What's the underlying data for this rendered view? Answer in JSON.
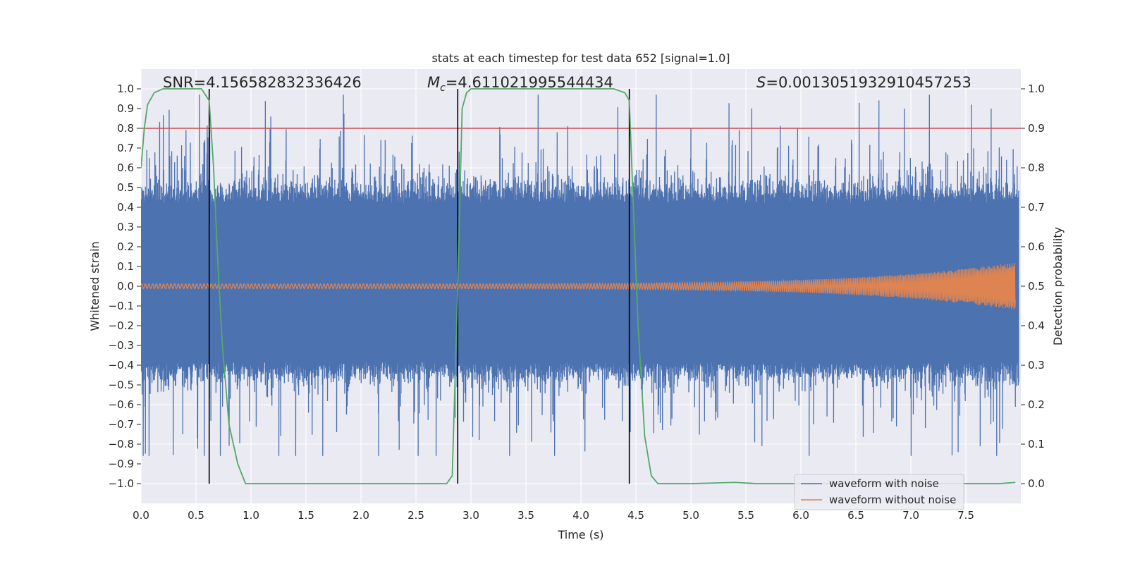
{
  "chart_data": {
    "type": "line",
    "title": "stats at each timestep for test data 652 [signal=1.0]",
    "xlabel": "Time (s)",
    "ylabel_left": "Whitened strain",
    "ylabel_right": "Detection probability",
    "xlim": [
      0.0,
      8.0
    ],
    "ylim_left": [
      -1.1,
      1.1
    ],
    "ylim_right": [
      -0.05,
      1.05
    ],
    "x_ticks": [
      "0.0",
      "0.5",
      "1.0",
      "1.5",
      "2.0",
      "2.5",
      "3.0",
      "3.5",
      "4.0",
      "4.5",
      "5.0",
      "5.5",
      "6.0",
      "6.5",
      "7.0",
      "7.5"
    ],
    "y_left_ticks": [
      "1.0",
      "0.9",
      "0.8",
      "0.7",
      "0.6",
      "0.5",
      "0.4",
      "0.3",
      "0.2",
      "0.1",
      "0.0",
      "−0.1",
      "−0.2",
      "−0.3",
      "−0.4",
      "−0.5",
      "−0.6",
      "−0.7",
      "−0.8",
      "−0.9",
      "−1.0"
    ],
    "y_right_ticks": [
      "1.0",
      "0.9",
      "0.8",
      "0.7",
      "0.6",
      "0.5",
      "0.4",
      "0.3",
      "0.2",
      "0.1",
      "0.0"
    ],
    "annotations": {
      "snr": "SNR=4.156582832336426",
      "mc": "=4.611021995544434",
      "mc_symbol": "M",
      "mc_sub": "c",
      "s": "=0.0013051932910457253",
      "s_symbol": "S"
    },
    "threshold_line": {
      "axis": "right",
      "value": 0.9,
      "color": "#c44e52"
    },
    "vertical_lines": [
      0.62,
      2.88,
      4.44
    ],
    "series": [
      {
        "name": "waveform with noise",
        "axis": "left",
        "color": "#4c72b0",
        "description_values": {
          "dense_band": [
            -0.38,
            0.42
          ],
          "max": 0.97,
          "min": -0.86
        }
      },
      {
        "name": "waveform without noise",
        "axis": "left",
        "color": "#dd8452",
        "amplitude_start": 0.012,
        "amplitude_end": 0.12,
        "x_end": 7.95
      },
      {
        "name": "detection probability",
        "axis": "right",
        "color": "#55a868",
        "x": [
          0.0,
          0.03,
          0.06,
          0.12,
          0.2,
          0.3,
          0.4,
          0.5,
          0.55,
          0.62,
          0.66,
          0.7,
          0.74,
          0.8,
          0.88,
          0.95,
          1.1,
          1.5,
          2.0,
          2.5,
          2.7,
          2.78,
          2.83,
          2.88,
          2.92,
          2.96,
          3.0,
          3.5,
          4.0,
          4.3,
          4.4,
          4.44,
          4.47,
          4.52,
          4.58,
          4.64,
          4.7,
          5.0,
          5.4,
          5.6,
          6.0,
          6.5,
          7.0,
          7.5,
          7.8,
          7.95
        ],
        "y": [
          0.8,
          0.9,
          0.96,
          0.99,
          1.0,
          1.0,
          1.0,
          1.0,
          1.0,
          0.97,
          0.8,
          0.55,
          0.35,
          0.15,
          0.05,
          0.0,
          0.0,
          0.0,
          0.0,
          0.0,
          0.0,
          0.0,
          0.02,
          0.5,
          0.95,
          0.99,
          1.0,
          1.0,
          1.0,
          1.0,
          0.99,
          0.97,
          0.75,
          0.4,
          0.12,
          0.02,
          0.0,
          0.0,
          0.003,
          0.0,
          0.0,
          0.0,
          0.0,
          0.0,
          0.0,
          0.003
        ]
      }
    ],
    "legend": {
      "location": "bottom-right",
      "entries": [
        {
          "label": "waveform with noise",
          "color": "#4c72b0"
        },
        {
          "label": "waveform without noise",
          "color": "#dd8452"
        }
      ]
    }
  }
}
